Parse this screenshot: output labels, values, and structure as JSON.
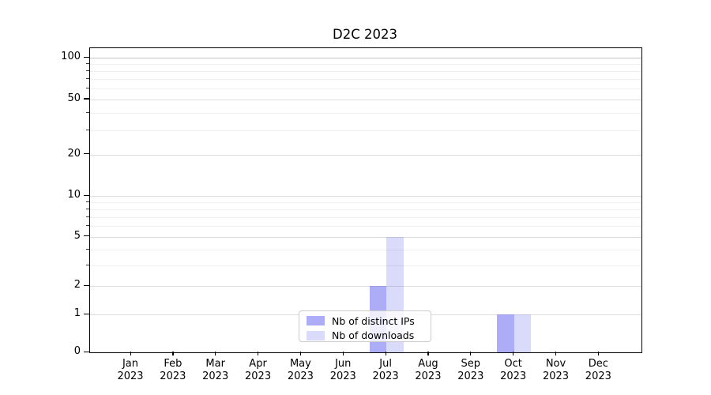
{
  "figure": {
    "background": "#ffffff"
  },
  "chart_data": {
    "type": "bar",
    "title": "D2C 2023",
    "xlabel": "",
    "ylabel": "",
    "categories": [
      "Jan 2023",
      "Feb 2023",
      "Mar 2023",
      "Apr 2023",
      "May 2023",
      "Jun 2023",
      "Jul 2023",
      "Aug 2023",
      "Sep 2023",
      "Oct 2023",
      "Nov 2023",
      "Dec 2023"
    ],
    "series": [
      {
        "name": "Nb of distinct IPs",
        "base_color": "#5555ee",
        "alpha": 0.49,
        "rendered_color": "#abaaf4",
        "values": [
          0,
          0,
          0,
          0,
          0,
          0,
          2,
          0,
          0,
          1,
          0,
          0
        ]
      },
      {
        "name": "Nb of downloads",
        "base_color": "#5555ee",
        "alpha": 0.22,
        "rendered_color": "#d9d9f8",
        "values": [
          0,
          0,
          0,
          0,
          0,
          0,
          5,
          0,
          0,
          1,
          0,
          0
        ]
      }
    ],
    "y_axis": {
      "scale": "asinh",
      "major_ticks": [
        0,
        1,
        2,
        5,
        10,
        20,
        50,
        100
      ],
      "minor_gridlines": [
        3,
        4,
        6,
        7,
        8,
        9,
        30,
        40,
        60,
        70,
        80,
        90
      ],
      "ylim": [
        0,
        115
      ]
    },
    "x_axis": {
      "tick_label_lines": 2
    },
    "legend": {
      "position": "lower center",
      "border_color": "#cccccc"
    },
    "grid": true,
    "colors": {
      "axis": "#000000",
      "major_grid": "#dedede",
      "minor_grid": "#efefef",
      "top_major_grid": "#c5c5c5"
    }
  }
}
